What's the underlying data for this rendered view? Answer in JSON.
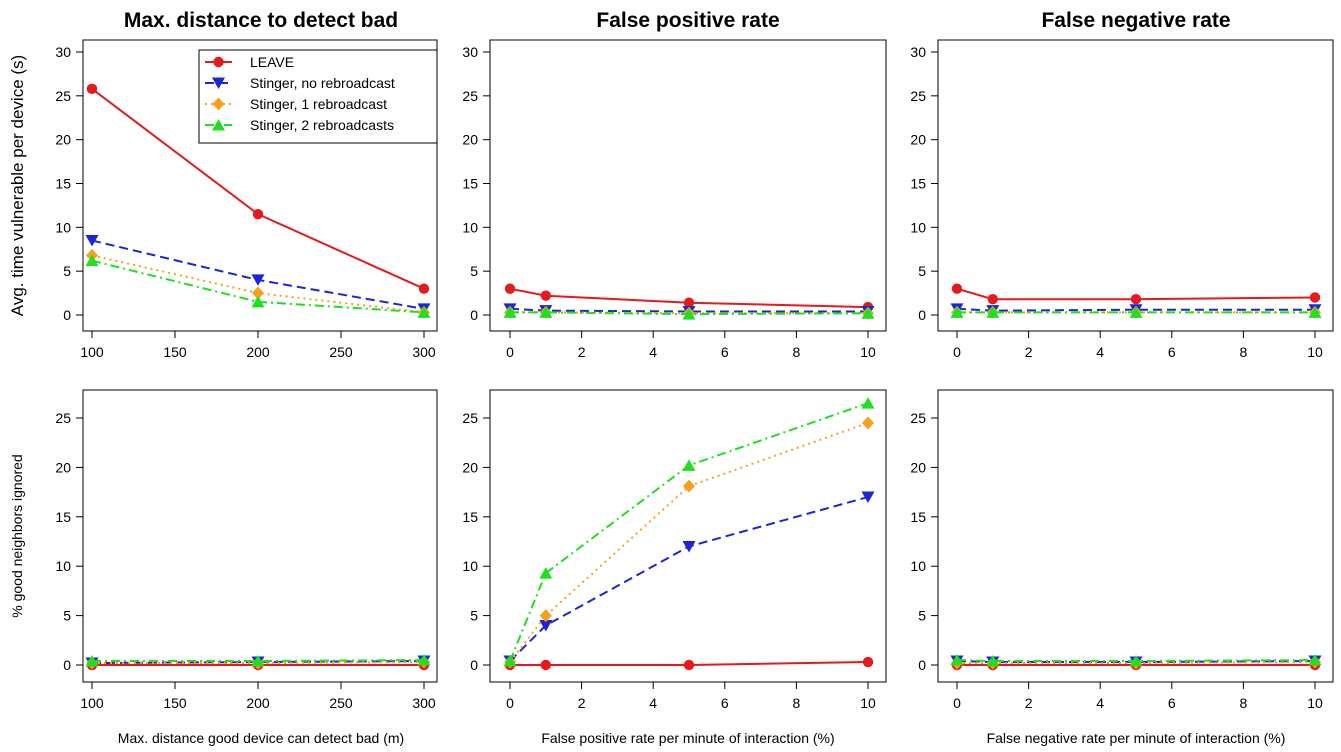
{
  "chart_data": [
    {
      "type": "line",
      "title": "Max. distance to detect bad",
      "xlabel": "",
      "ylabel": "Avg. time vulnerable per device (s)",
      "xlim": [
        100,
        300
      ],
      "ylim": [
        0,
        30
      ],
      "xticks": [
        100,
        150,
        200,
        250,
        300
      ],
      "yticks": [
        0,
        5,
        10,
        15,
        20,
        25,
        30
      ],
      "x": [
        100,
        200,
        300
      ],
      "legend_position": "top-right",
      "series": [
        {
          "name": "LEAVE",
          "values": [
            25.8,
            11.5,
            3.0
          ]
        },
        {
          "name": "Stinger, no rebroadcast",
          "values": [
            8.5,
            4.0,
            0.7
          ]
        },
        {
          "name": "Stinger, 1 rebroadcast",
          "values": [
            6.8,
            2.5,
            0.3
          ]
        },
        {
          "name": "Stinger, 2 rebroadcasts",
          "values": [
            6.2,
            1.5,
            0.3
          ]
        }
      ]
    },
    {
      "type": "line",
      "title": "False positive rate",
      "xlabel": "",
      "ylabel": "",
      "xlim": [
        0,
        10
      ],
      "ylim": [
        0,
        30
      ],
      "xticks": [
        0,
        2,
        4,
        6,
        8,
        10
      ],
      "yticks": [
        0,
        5,
        10,
        15,
        20,
        25,
        30
      ],
      "x": [
        0,
        1,
        5,
        10
      ],
      "series": [
        {
          "values": [
            3.0,
            2.2,
            1.4,
            0.9
          ]
        },
        {
          "values": [
            0.7,
            0.5,
            0.4,
            0.4
          ]
        },
        {
          "values": [
            0.3,
            0.3,
            0.2,
            0.2
          ]
        },
        {
          "values": [
            0.3,
            0.3,
            0.1,
            0.2
          ]
        }
      ]
    },
    {
      "type": "line",
      "title": "False negative rate",
      "xlabel": "",
      "ylabel": "",
      "xlim": [
        0,
        10
      ],
      "ylim": [
        0,
        30
      ],
      "xticks": [
        0,
        2,
        4,
        6,
        8,
        10
      ],
      "yticks": [
        0,
        5,
        10,
        15,
        20,
        25,
        30
      ],
      "x": [
        0,
        1,
        5,
        10
      ],
      "series": [
        {
          "values": [
            3.0,
            1.8,
            1.8,
            2.0
          ]
        },
        {
          "values": [
            0.7,
            0.5,
            0.6,
            0.6
          ]
        },
        {
          "values": [
            0.3,
            0.3,
            0.3,
            0.3
          ]
        },
        {
          "values": [
            0.3,
            0.3,
            0.3,
            0.3
          ]
        }
      ]
    },
    {
      "type": "line",
      "title": "",
      "xlabel": "Max. distance good device can detect bad (m)",
      "ylabel": "% good neighbors ignored",
      "xlim": [
        100,
        300
      ],
      "ylim": [
        0,
        25
      ],
      "xticks": [
        100,
        150,
        200,
        250,
        300
      ],
      "yticks": [
        0,
        5,
        10,
        15,
        20,
        25
      ],
      "x": [
        100,
        200,
        300
      ],
      "series": [
        {
          "values": [
            0.0,
            0.0,
            0.0
          ]
        },
        {
          "values": [
            0.2,
            0.3,
            0.4
          ]
        },
        {
          "values": [
            0.2,
            0.2,
            0.3
          ]
        },
        {
          "values": [
            0.4,
            0.4,
            0.5
          ]
        }
      ]
    },
    {
      "type": "line",
      "title": "",
      "xlabel": "False positive rate per minute of interaction (%)",
      "ylabel": "",
      "xlim": [
        0,
        10
      ],
      "ylim": [
        0,
        25
      ],
      "xticks": [
        0,
        2,
        4,
        6,
        8,
        10
      ],
      "yticks": [
        0,
        5,
        10,
        15,
        20,
        25
      ],
      "x": [
        0,
        1,
        5,
        10
      ],
      "series": [
        {
          "values": [
            0.0,
            0.0,
            0.0,
            0.3
          ]
        },
        {
          "values": [
            0.4,
            4.0,
            12.0,
            17.0
          ]
        },
        {
          "values": [
            0.3,
            5.0,
            18.1,
            24.5
          ]
        },
        {
          "values": [
            0.4,
            9.3,
            20.2,
            26.5
          ]
        }
      ]
    },
    {
      "type": "line",
      "title": "",
      "xlabel": "False negative rate per minute of interaction (%)",
      "ylabel": "",
      "xlim": [
        0,
        10
      ],
      "ylim": [
        0,
        25
      ],
      "xticks": [
        0,
        2,
        4,
        6,
        8,
        10
      ],
      "yticks": [
        0,
        5,
        10,
        15,
        20,
        25
      ],
      "x": [
        0,
        1,
        5,
        10
      ],
      "series": [
        {
          "values": [
            0.0,
            0.0,
            0.0,
            0.0
          ]
        },
        {
          "values": [
            0.4,
            0.3,
            0.3,
            0.4
          ]
        },
        {
          "values": [
            0.2,
            0.2,
            0.2,
            0.3
          ]
        },
        {
          "values": [
            0.5,
            0.4,
            0.4,
            0.5
          ]
        }
      ]
    }
  ],
  "series_styles": [
    {
      "color": "#e8191a",
      "marker": "circle",
      "dash": ""
    },
    {
      "color": "#1b26d6",
      "marker": "triangle-down",
      "dash": "9 5"
    },
    {
      "color": "#f6a11e",
      "marker": "diamond",
      "dash": "2 4"
    },
    {
      "color": "#1fe01f",
      "marker": "triangle-up",
      "dash": "9 4 2 4"
    }
  ]
}
